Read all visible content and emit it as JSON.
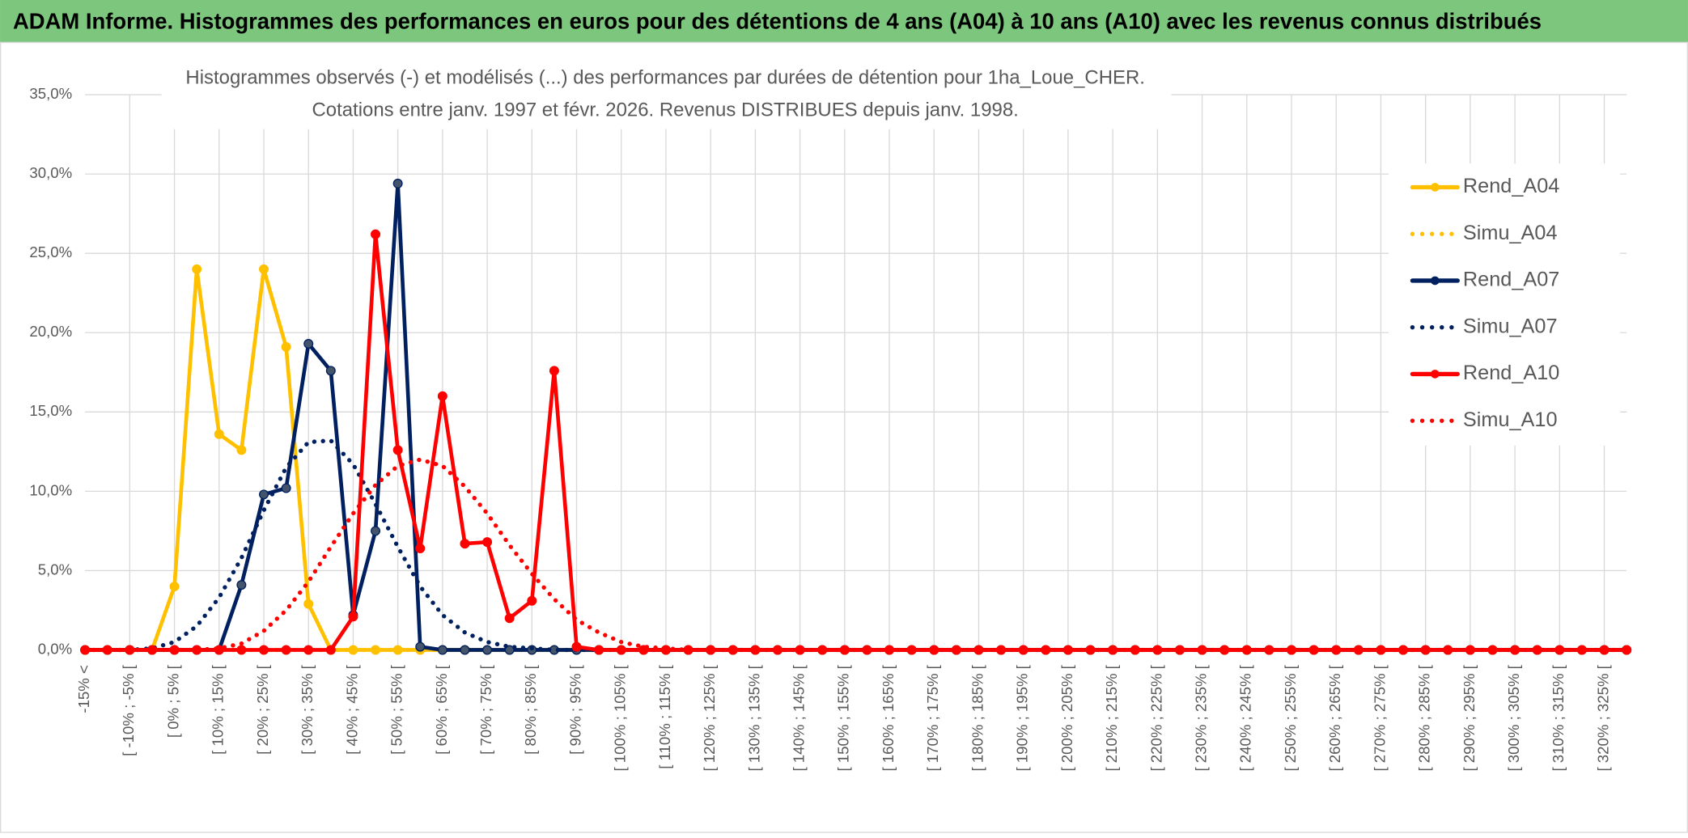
{
  "chart_data": {
    "type": "line",
    "title": "ADAM Informe. Histogrammes des performances en euros pour des détentions de 4 ans (A04) à 10 ans (A10) avec les revenus connus distribués",
    "subtitle": [
      "Histogrammes observés (-) et modélisés (...) des performances par durées de détention pour 1ha_Loue_CHER.",
      "Cotations entre janv. 1997 et févr. 2026. Revenus DISTRIBUES depuis janv. 1998."
    ],
    "categories": [
      "-15% <",
      null,
      "[ -10% ; -5% [",
      null,
      "[ 0% ; 5% [",
      null,
      "[ 10% ; 15% [",
      null,
      "[ 20% ; 25% [",
      null,
      "[ 30% ; 35% [",
      null,
      "[ 40% ; 45% [",
      null,
      "[ 50% ; 55% [",
      null,
      "[ 60% ; 65% [",
      null,
      "[ 70% ; 75% [",
      null,
      "[ 80% ; 85% [",
      null,
      "[ 90% ; 95% [",
      null,
      "[ 100% ; 105% [",
      null,
      "[ 110% ; 115% [",
      null,
      "[ 120% ; 125% [",
      null,
      "[ 130% ; 135% [",
      null,
      "[ 140% ; 145% [",
      null,
      "[ 150% ; 155% [",
      null,
      "[ 160% ; 165% [",
      null,
      "[ 170% ; 175% [",
      null,
      "[ 180% ; 185% [",
      null,
      "[ 190% ; 195% [",
      null,
      "[ 200% ; 205% [",
      null,
      "[ 210% ; 215% [",
      null,
      "[ 220% ; 225% [",
      null,
      "[ 230% ; 235% [",
      null,
      "[ 240% ; 245% [",
      null,
      "[ 250% ; 255% [",
      null,
      "[ 260% ; 265% [",
      null,
      "[ 270% ; 275% [",
      null,
      "[ 280% ; 285% [",
      null,
      "[ 290% ; 295% [",
      null,
      "[ 300% ; 305% [",
      null,
      "[ 310% ; 315% [",
      null,
      "[ 320% ; 325% [",
      null
    ],
    "series": [
      {
        "name": "Rend_A04",
        "color": "#ffc000",
        "style": "solid",
        "marker": true,
        "values": [
          0,
          0,
          0,
          0,
          4.0,
          24.0,
          13.6,
          12.6,
          24.0,
          19.1,
          2.9,
          0,
          0,
          0,
          0,
          0,
          0,
          0,
          0,
          0,
          0,
          0,
          0,
          0,
          0,
          0,
          0,
          0,
          0,
          0,
          0,
          0,
          0,
          0,
          0,
          0,
          0,
          0,
          0,
          0,
          0,
          0,
          0,
          0,
          0,
          0,
          0,
          0,
          0,
          0,
          0,
          0,
          0,
          0,
          0,
          0,
          0,
          0,
          0,
          0,
          0,
          0,
          0,
          0,
          0,
          0,
          0,
          0,
          0,
          0
        ]
      },
      {
        "name": "Simu_A04",
        "color": "#ffc000",
        "style": "dotted",
        "marker": false,
        "values": [
          0,
          0,
          0,
          0,
          0,
          0,
          0,
          0,
          0,
          0,
          0,
          0,
          0,
          0,
          0,
          0,
          0,
          0,
          0,
          0,
          0,
          0,
          0,
          0,
          0,
          0,
          0,
          0,
          0,
          0,
          0,
          0,
          0,
          0,
          0,
          0,
          0,
          0,
          0,
          0,
          0,
          0,
          0,
          0,
          0,
          0,
          0,
          0,
          0,
          0,
          0,
          0,
          0,
          0,
          0,
          0,
          0,
          0,
          0,
          0,
          0,
          0,
          0,
          0,
          0,
          0,
          0,
          0,
          0,
          0
        ]
      },
      {
        "name": "Rend_A07",
        "color": "#002060",
        "style": "solid",
        "marker": true,
        "values": [
          0,
          0,
          0,
          0,
          0,
          0,
          0,
          4.1,
          9.8,
          10.2,
          19.3,
          17.6,
          2.2,
          7.5,
          29.4,
          0.2,
          0,
          0,
          0,
          0,
          0,
          0,
          0,
          0,
          0,
          0,
          0,
          0,
          0,
          0,
          0,
          0,
          0,
          0,
          0,
          0,
          0,
          0,
          0,
          0,
          0,
          0,
          0,
          0,
          0,
          0,
          0,
          0,
          0,
          0,
          0,
          0,
          0,
          0,
          0,
          0,
          0,
          0,
          0,
          0,
          0,
          0,
          0,
          0,
          0,
          0,
          0,
          0,
          0,
          0
        ]
      },
      {
        "name": "Simu_A07",
        "color": "#002060",
        "style": "dotted",
        "marker": false,
        "values": [
          0,
          0,
          0,
          0.1,
          0.5,
          1.5,
          3.3,
          5.8,
          8.8,
          11.5,
          13.1,
          13.2,
          11.7,
          9.2,
          6.5,
          4.0,
          2.2,
          1.1,
          0.5,
          0.2,
          0.1,
          0,
          0,
          0,
          0,
          0,
          0,
          0,
          0,
          0,
          0,
          0,
          0,
          0,
          0,
          0,
          0,
          0,
          0,
          0,
          0,
          0,
          0,
          0,
          0,
          0,
          0,
          0,
          0,
          0,
          0,
          0,
          0,
          0,
          0,
          0,
          0,
          0,
          0,
          0,
          0,
          0,
          0,
          0,
          0,
          0,
          0,
          0,
          0,
          0
        ]
      },
      {
        "name": "Rend_A10",
        "color": "#ff0000",
        "style": "solid",
        "marker": true,
        "values": [
          0,
          0,
          0,
          0,
          0,
          0,
          0,
          0,
          0,
          0,
          0,
          0,
          2.1,
          26.2,
          12.6,
          6.4,
          16.0,
          6.7,
          6.8,
          2.0,
          3.1,
          17.6,
          0.2,
          0,
          0,
          0,
          0,
          0,
          0,
          0,
          0,
          0,
          0,
          0,
          0,
          0,
          0,
          0,
          0,
          0,
          0,
          0,
          0,
          0,
          0,
          0,
          0,
          0,
          0,
          0,
          0,
          0,
          0,
          0,
          0,
          0,
          0,
          0,
          0,
          0,
          0,
          0,
          0,
          0,
          0,
          0,
          0,
          0,
          0,
          0
        ]
      },
      {
        "name": "Simu_A10",
        "color": "#ff0000",
        "style": "dotted",
        "marker": false,
        "values": [
          0,
          0,
          0,
          0,
          0,
          0,
          0.1,
          0.4,
          1.2,
          2.5,
          4.3,
          6.5,
          8.6,
          10.4,
          11.6,
          12.0,
          11.6,
          10.3,
          8.6,
          6.6,
          4.8,
          3.2,
          1.9,
          1.1,
          0.5,
          0.2,
          0.1,
          0,
          0,
          0,
          0,
          0,
          0,
          0,
          0,
          0,
          0,
          0,
          0,
          0,
          0,
          0,
          0,
          0,
          0,
          0,
          0,
          0,
          0,
          0,
          0,
          0,
          0,
          0,
          0,
          0,
          0,
          0,
          0,
          0,
          0,
          0,
          0,
          0,
          0,
          0,
          0,
          0,
          0,
          0
        ]
      }
    ],
    "ylim": [
      0,
      35
    ],
    "yticks": [
      {
        "value": 0,
        "label": "0,0%"
      },
      {
        "value": 5,
        "label": "5,0%"
      },
      {
        "value": 10,
        "label": "10,0%"
      },
      {
        "value": 15,
        "label": "15,0%"
      },
      {
        "value": 20,
        "label": "20,0%"
      },
      {
        "value": 25,
        "label": "25,0%"
      },
      {
        "value": 30,
        "label": "30,0%"
      },
      {
        "value": 35,
        "label": "35,0%"
      }
    ],
    "grid": true,
    "legend": "right"
  }
}
